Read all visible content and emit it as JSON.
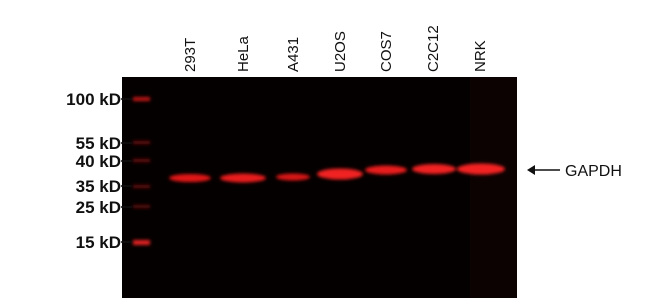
{
  "lanes": [
    "293T",
    "HeLa",
    "A431",
    "U2OS",
    "COS7",
    "C2C12",
    "NRK"
  ],
  "markers": [
    "100 kD",
    "55 kD",
    "40 kD",
    "35 kD",
    "25 kD",
    "15 kD"
  ],
  "target": "GAPDH"
}
